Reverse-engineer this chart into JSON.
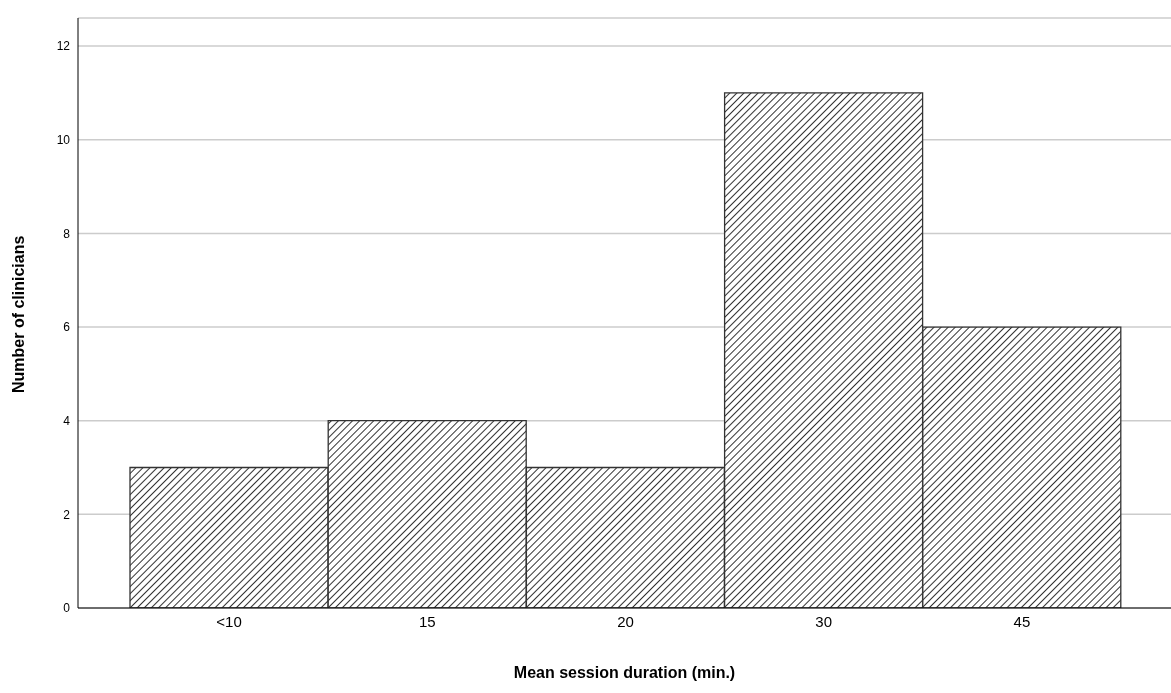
{
  "chart_data": {
    "type": "bar",
    "xlabel": "Mean session duration (min.)",
    "ylabel": "Number of clinicians",
    "categories": [
      "<10",
      "15",
      "20",
      "30",
      "45"
    ],
    "values": [
      3,
      4,
      3,
      11,
      6
    ],
    "color": "#333333",
    "ylim": [
      0,
      12.6
    ],
    "yticks": [
      0,
      2,
      4,
      6,
      8,
      10,
      12
    ],
    "grid": "y"
  }
}
